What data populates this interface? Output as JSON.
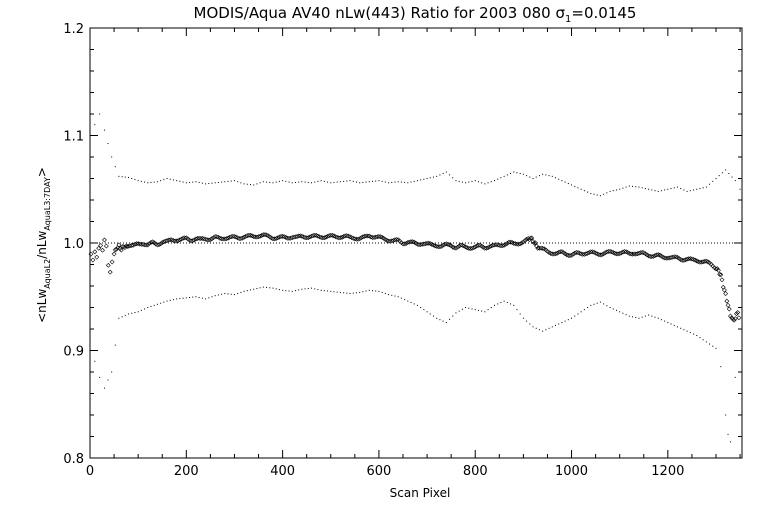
{
  "chart_data": {
    "type": "scatter",
    "title": "MODIS/Aqua AV40 nLw(443) Ratio for 2003 080 σ",
    "title_subscript": "1",
    "title_suffix": "=0.0145",
    "xlabel": "Scan Pixel",
    "ylabel": {
      "prefix": "<nLw",
      "sub1": "AquaL2",
      "mid": "/nLw",
      "sub2": "AquaL3:7DAY",
      "suffix": ">"
    },
    "xlim": [
      0,
      1354
    ],
    "ylim": [
      0.8,
      1.2
    ],
    "x_ticks": [
      0,
      200,
      400,
      600,
      800,
      1000,
      1200
    ],
    "y_ticks": [
      0.8,
      0.9,
      1.0,
      1.1,
      1.2
    ],
    "y_tick_labels": [
      "0.8",
      "0.9",
      "1.0",
      "1.1",
      "1.2"
    ],
    "reference_line": 1.0,
    "grid": false,
    "legend": "none",
    "colors": {
      "points": "#000000",
      "axes": "#000000",
      "background": "#ffffff"
    },
    "series": [
      {
        "role": "mean ratio (diamond markers)",
        "points": [
          [
            2,
            0.99
          ],
          [
            6,
            0.985
          ],
          [
            10,
            0.993
          ],
          [
            14,
            0.988
          ],
          [
            18,
            0.996
          ],
          [
            22,
            0.998
          ],
          [
            26,
            0.993
          ],
          [
            30,
            1.002
          ],
          [
            34,
            0.996
          ],
          [
            38,
            0.978
          ],
          [
            42,
            0.972
          ],
          [
            46,
            0.982
          ],
          [
            50,
            0.99
          ],
          [
            55,
            0.995
          ],
          [
            60,
            0.997
          ],
          [
            65,
            0.994
          ],
          [
            70,
            0.997
          ],
          [
            75,
            0.996
          ],
          [
            80,
            0.998
          ],
          [
            90,
            0.997
          ],
          [
            100,
            0.999
          ],
          [
            110,
            1.0
          ],
          [
            120,
            0.998
          ],
          [
            130,
            1.0
          ],
          [
            140,
            0.999
          ],
          [
            150,
            1.001
          ],
          [
            160,
            1.001
          ],
          [
            170,
            1.003
          ],
          [
            180,
            1.003
          ],
          [
            190,
            1.003
          ],
          [
            200,
            1.004
          ],
          [
            210,
            1.003
          ],
          [
            220,
            1.004
          ],
          [
            230,
            1.003
          ],
          [
            240,
            1.004
          ],
          [
            250,
            1.004
          ],
          [
            260,
            1.005
          ],
          [
            270,
            1.004
          ],
          [
            280,
            1.005
          ],
          [
            290,
            1.005
          ],
          [
            300,
            1.005
          ],
          [
            310,
            1.005
          ],
          [
            320,
            1.006
          ],
          [
            330,
            1.006
          ],
          [
            340,
            1.006
          ],
          [
            350,
            1.007
          ],
          [
            360,
            1.007
          ],
          [
            370,
            1.006
          ],
          [
            380,
            1.005
          ],
          [
            390,
            1.005
          ],
          [
            400,
            1.005
          ],
          [
            410,
            1.005
          ],
          [
            420,
            1.006
          ],
          [
            430,
            1.005
          ],
          [
            440,
            1.006
          ],
          [
            450,
            1.006
          ],
          [
            460,
            1.006
          ],
          [
            470,
            1.006
          ],
          [
            480,
            1.006
          ],
          [
            490,
            1.006
          ],
          [
            500,
            1.006
          ],
          [
            510,
            1.006
          ],
          [
            520,
            1.006
          ],
          [
            530,
            1.006
          ],
          [
            540,
            1.005
          ],
          [
            550,
            1.005
          ],
          [
            560,
            1.004
          ],
          [
            570,
            1.005
          ],
          [
            580,
            1.007
          ],
          [
            590,
            1.006
          ],
          [
            600,
            1.005
          ],
          [
            610,
            1.004
          ],
          [
            620,
            1.003
          ],
          [
            630,
            1.002
          ],
          [
            640,
            1.002
          ],
          [
            650,
            1.0
          ],
          [
            660,
            1.001
          ],
          [
            670,
            1.0
          ],
          [
            680,
            0.999
          ],
          [
            690,
            1.0
          ],
          [
            700,
            0.999
          ],
          [
            710,
            0.998
          ],
          [
            720,
            0.998
          ],
          [
            730,
            0.997
          ],
          [
            740,
            0.998
          ],
          [
            750,
            0.998
          ],
          [
            760,
            0.996
          ],
          [
            770,
            0.997
          ],
          [
            780,
            0.996
          ],
          [
            790,
            0.996
          ],
          [
            800,
            0.996
          ],
          [
            810,
            0.997
          ],
          [
            820,
            0.996
          ],
          [
            830,
            0.997
          ],
          [
            840,
            0.997
          ],
          [
            850,
            0.998
          ],
          [
            860,
            0.999
          ],
          [
            870,
            1.0
          ],
          [
            880,
            0.999
          ],
          [
            890,
            1.0
          ],
          [
            900,
            1.001
          ],
          [
            910,
            1.003
          ],
          [
            915,
            1.005
          ],
          [
            920,
            1.002
          ],
          [
            925,
            0.999
          ],
          [
            930,
            0.996
          ],
          [
            940,
            0.994
          ],
          [
            950,
            0.992
          ],
          [
            960,
            0.991
          ],
          [
            970,
            0.99
          ],
          [
            980,
            0.991
          ],
          [
            990,
            0.99
          ],
          [
            1000,
            0.989
          ],
          [
            1010,
            0.99
          ],
          [
            1020,
            0.99
          ],
          [
            1030,
            0.991
          ],
          [
            1040,
            0.991
          ],
          [
            1050,
            0.99
          ],
          [
            1060,
            0.99
          ],
          [
            1070,
            0.991
          ],
          [
            1080,
            0.991
          ],
          [
            1090,
            0.991
          ],
          [
            1100,
            0.991
          ],
          [
            1110,
            0.991
          ],
          [
            1120,
            0.99
          ],
          [
            1130,
            0.991
          ],
          [
            1140,
            0.99
          ],
          [
            1150,
            0.99
          ],
          [
            1160,
            0.989
          ],
          [
            1170,
            0.988
          ],
          [
            1180,
            0.988
          ],
          [
            1190,
            0.987
          ],
          [
            1200,
            0.987
          ],
          [
            1210,
            0.986
          ],
          [
            1220,
            0.986
          ],
          [
            1230,
            0.985
          ],
          [
            1240,
            0.985
          ],
          [
            1250,
            0.984
          ],
          [
            1260,
            0.984
          ],
          [
            1270,
            0.983
          ],
          [
            1280,
            0.982
          ],
          [
            1290,
            0.98
          ],
          [
            1300,
            0.977
          ],
          [
            1305,
            0.974
          ],
          [
            1310,
            0.97
          ],
          [
            1315,
            0.96
          ],
          [
            1320,
            0.952
          ],
          [
            1325,
            0.942
          ],
          [
            1330,
            0.933
          ],
          [
            1335,
            0.928
          ],
          [
            1340,
            0.93
          ],
          [
            1345,
            0.936
          ],
          [
            1350,
            0.926
          ]
        ]
      },
      {
        "role": "upper bound (+spread, dots)",
        "points": [
          [
            10,
            1.11
          ],
          [
            20,
            1.12
          ],
          [
            30,
            1.105
          ],
          [
            45,
            1.08
          ],
          [
            60,
            1.062
          ],
          [
            80,
            1.061
          ],
          [
            100,
            1.058
          ],
          [
            120,
            1.056
          ],
          [
            140,
            1.057
          ],
          [
            160,
            1.06
          ],
          [
            180,
            1.058
          ],
          [
            200,
            1.056
          ],
          [
            220,
            1.057
          ],
          [
            240,
            1.055
          ],
          [
            260,
            1.056
          ],
          [
            280,
            1.057
          ],
          [
            300,
            1.058
          ],
          [
            320,
            1.055
          ],
          [
            340,
            1.054
          ],
          [
            360,
            1.057
          ],
          [
            380,
            1.056
          ],
          [
            400,
            1.058
          ],
          [
            420,
            1.056
          ],
          [
            440,
            1.057
          ],
          [
            460,
            1.056
          ],
          [
            480,
            1.058
          ],
          [
            500,
            1.056
          ],
          [
            520,
            1.057
          ],
          [
            540,
            1.058
          ],
          [
            560,
            1.056
          ],
          [
            580,
            1.057
          ],
          [
            600,
            1.058
          ],
          [
            620,
            1.056
          ],
          [
            640,
            1.057
          ],
          [
            660,
            1.056
          ],
          [
            680,
            1.058
          ],
          [
            700,
            1.06
          ],
          [
            720,
            1.062
          ],
          [
            740,
            1.066
          ],
          [
            760,
            1.058
          ],
          [
            780,
            1.056
          ],
          [
            800,
            1.058
          ],
          [
            820,
            1.055
          ],
          [
            840,
            1.058
          ],
          [
            860,
            1.062
          ],
          [
            880,
            1.066
          ],
          [
            900,
            1.064
          ],
          [
            920,
            1.06
          ],
          [
            940,
            1.064
          ],
          [
            960,
            1.062
          ],
          [
            980,
            1.058
          ],
          [
            1000,
            1.054
          ],
          [
            1020,
            1.05
          ],
          [
            1040,
            1.046
          ],
          [
            1060,
            1.044
          ],
          [
            1080,
            1.048
          ],
          [
            1100,
            1.05
          ],
          [
            1120,
            1.053
          ],
          [
            1140,
            1.052
          ],
          [
            1160,
            1.05
          ],
          [
            1180,
            1.048
          ],
          [
            1200,
            1.05
          ],
          [
            1220,
            1.052
          ],
          [
            1240,
            1.048
          ],
          [
            1260,
            1.05
          ],
          [
            1280,
            1.052
          ],
          [
            1300,
            1.06
          ],
          [
            1320,
            1.068
          ],
          [
            1340,
            1.058
          ],
          [
            1350,
            1.05
          ]
        ]
      },
      {
        "role": "lower bound (−spread, dots)",
        "points": [
          [
            10,
            0.89
          ],
          [
            20,
            0.875
          ],
          [
            30,
            0.865
          ],
          [
            45,
            0.88
          ],
          [
            60,
            0.93
          ],
          [
            80,
            0.934
          ],
          [
            100,
            0.936
          ],
          [
            120,
            0.94
          ],
          [
            140,
            0.943
          ],
          [
            160,
            0.946
          ],
          [
            180,
            0.948
          ],
          [
            200,
            0.949
          ],
          [
            220,
            0.95
          ],
          [
            240,
            0.948
          ],
          [
            260,
            0.951
          ],
          [
            280,
            0.953
          ],
          [
            300,
            0.952
          ],
          [
            320,
            0.955
          ],
          [
            340,
            0.957
          ],
          [
            360,
            0.959
          ],
          [
            380,
            0.958
          ],
          [
            400,
            0.956
          ],
          [
            420,
            0.955
          ],
          [
            440,
            0.957
          ],
          [
            460,
            0.958
          ],
          [
            480,
            0.956
          ],
          [
            500,
            0.955
          ],
          [
            520,
            0.954
          ],
          [
            540,
            0.953
          ],
          [
            560,
            0.954
          ],
          [
            580,
            0.956
          ],
          [
            600,
            0.955
          ],
          [
            620,
            0.952
          ],
          [
            640,
            0.95
          ],
          [
            660,
            0.946
          ],
          [
            680,
            0.942
          ],
          [
            700,
            0.936
          ],
          [
            720,
            0.93
          ],
          [
            740,
            0.926
          ],
          [
            760,
            0.935
          ],
          [
            780,
            0.94
          ],
          [
            800,
            0.938
          ],
          [
            820,
            0.936
          ],
          [
            840,
            0.942
          ],
          [
            860,
            0.946
          ],
          [
            880,
            0.942
          ],
          [
            900,
            0.93
          ],
          [
            920,
            0.922
          ],
          [
            940,
            0.918
          ],
          [
            960,
            0.922
          ],
          [
            980,
            0.926
          ],
          [
            1000,
            0.93
          ],
          [
            1020,
            0.936
          ],
          [
            1040,
            0.942
          ],
          [
            1060,
            0.945
          ],
          [
            1080,
            0.94
          ],
          [
            1100,
            0.936
          ],
          [
            1120,
            0.932
          ],
          [
            1140,
            0.93
          ],
          [
            1160,
            0.933
          ],
          [
            1180,
            0.93
          ],
          [
            1200,
            0.926
          ],
          [
            1220,
            0.922
          ],
          [
            1240,
            0.918
          ],
          [
            1260,
            0.914
          ],
          [
            1280,
            0.908
          ],
          [
            1300,
            0.902
          ],
          [
            1310,
            0.885
          ],
          [
            1320,
            0.84
          ],
          [
            1325,
            0.822
          ],
          [
            1330,
            0.815
          ],
          [
            1340,
            0.875
          ]
        ]
      }
    ]
  }
}
